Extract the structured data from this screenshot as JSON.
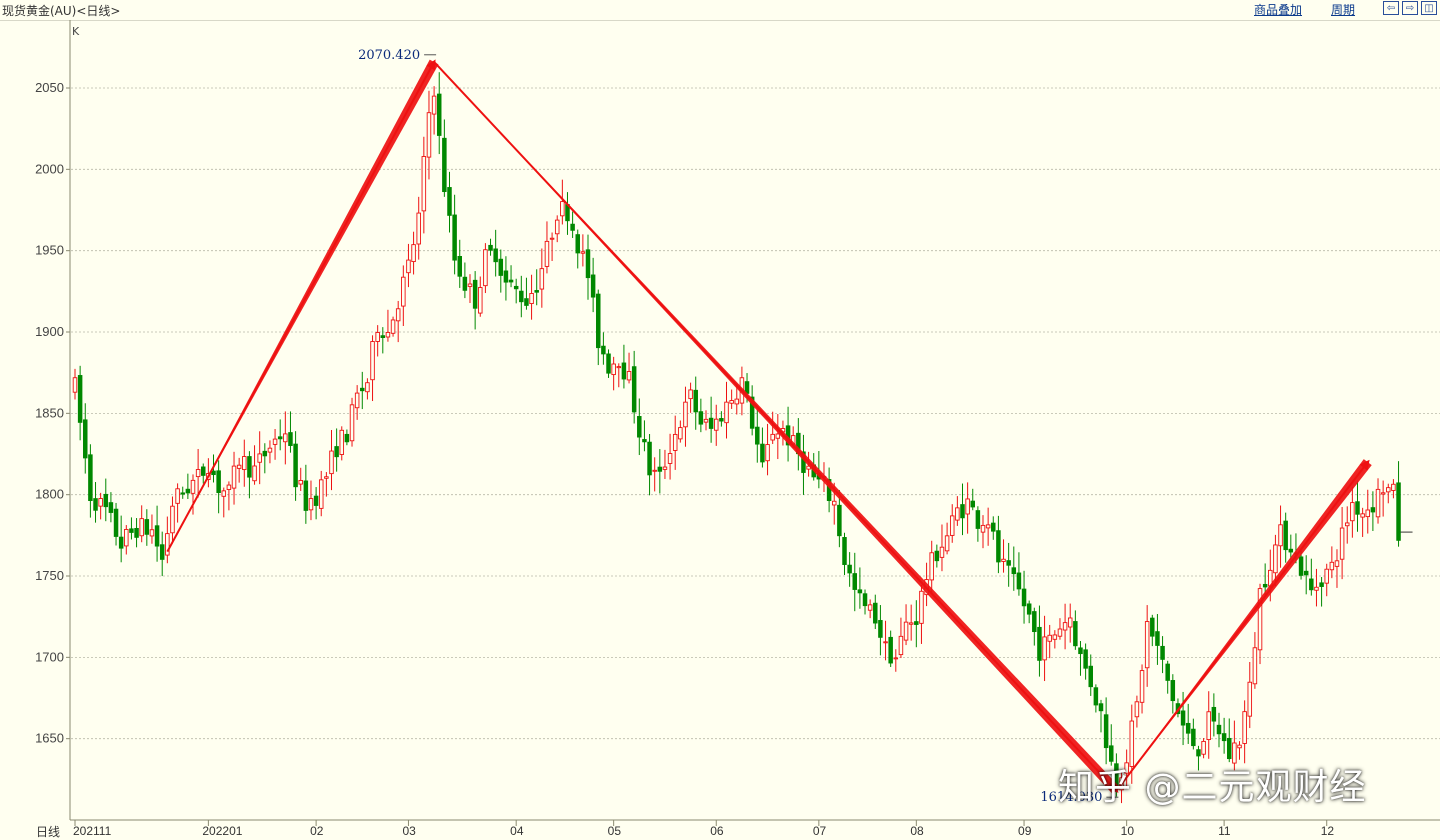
{
  "header": {
    "title": "现货黄金(AU)<日线>",
    "overlay_link": "商品叠加",
    "period_link": "周期"
  },
  "footer": {
    "period_label": "日线"
  },
  "watermark": "知乎 @二元观财经",
  "colors": {
    "up": "#ee1111",
    "down": "#008800",
    "background": "#fffff0",
    "trend": "#ee1111"
  },
  "chart_data": {
    "type": "candlestick",
    "unit_label": "K",
    "ylim": [
      1600,
      2080
    ],
    "y_ticks": [
      1650,
      1700,
      1750,
      1800,
      1850,
      1900,
      1950,
      2000,
      2050
    ],
    "x_ticks": [
      {
        "label": "202111",
        "day": 0
      },
      {
        "label": "202201",
        "day": 26
      },
      {
        "label": "02",
        "day": 47
      },
      {
        "label": "03",
        "day": 65
      },
      {
        "label": "04",
        "day": 86
      },
      {
        "label": "05",
        "day": 105
      },
      {
        "label": "06",
        "day": 125
      },
      {
        "label": "07",
        "day": 145
      },
      {
        "label": "08",
        "day": 164
      },
      {
        "label": "09",
        "day": 185
      },
      {
        "label": "10",
        "day": 205
      },
      {
        "label": "11",
        "day": 224
      },
      {
        "label": "12",
        "day": 244
      }
    ],
    "annotations": [
      {
        "text": "2070.420",
        "day": 70,
        "value": 2070.42
      },
      {
        "text": "1614.030",
        "day": 203,
        "value": 1614.03
      }
    ],
    "trend_lines": [
      {
        "from": [
          18,
          1765
        ],
        "to": [
          70,
          2066
        ]
      },
      {
        "from": [
          70,
          2066
        ],
        "to": [
          203,
          1618
        ]
      },
      {
        "from": [
          203,
          1618
        ],
        "to": [
          252,
          1820
        ]
      }
    ],
    "anchors": [
      [
        0,
        1866
      ],
      [
        3,
        1800
      ],
      [
        6,
        1790
      ],
      [
        9,
        1770
      ],
      [
        12,
        1780
      ],
      [
        15,
        1778
      ],
      [
        17,
        1760
      ],
      [
        19,
        1795
      ],
      [
        22,
        1805
      ],
      [
        24,
        1810
      ],
      [
        26,
        1820
      ],
      [
        28,
        1805
      ],
      [
        30,
        1800
      ],
      [
        32,
        1822
      ],
      [
        35,
        1815
      ],
      [
        38,
        1830
      ],
      [
        41,
        1840
      ],
      [
        43,
        1810
      ],
      [
        45,
        1795
      ],
      [
        47,
        1800
      ],
      [
        49,
        1812
      ],
      [
        51,
        1830
      ],
      [
        53,
        1838
      ],
      [
        55,
        1860
      ],
      [
        57,
        1870
      ],
      [
        59,
        1905
      ],
      [
        61,
        1900
      ],
      [
        63,
        1920
      ],
      [
        65,
        1940
      ],
      [
        67,
        1970
      ],
      [
        69,
        2035
      ],
      [
        70,
        2045
      ],
      [
        72,
        1990
      ],
      [
        74,
        1945
      ],
      [
        76,
        1930
      ],
      [
        78,
        1920
      ],
      [
        80,
        1945
      ],
      [
        82,
        1950
      ],
      [
        84,
        1930
      ],
      [
        86,
        1925
      ],
      [
        88,
        1920
      ],
      [
        90,
        1930
      ],
      [
        92,
        1950
      ],
      [
        94,
        1975
      ],
      [
        96,
        1975
      ],
      [
        98,
        1955
      ],
      [
        100,
        1935
      ],
      [
        102,
        1895
      ],
      [
        104,
        1880
      ],
      [
        106,
        1885
      ],
      [
        108,
        1870
      ],
      [
        110,
        1840
      ],
      [
        112,
        1815
      ],
      [
        114,
        1810
      ],
      [
        116,
        1830
      ],
      [
        118,
        1845
      ],
      [
        120,
        1860
      ],
      [
        122,
        1845
      ],
      [
        124,
        1840
      ],
      [
        126,
        1850
      ],
      [
        128,
        1860
      ],
      [
        130,
        1870
      ],
      [
        132,
        1845
      ],
      [
        134,
        1815
      ],
      [
        136,
        1840
      ],
      [
        138,
        1840
      ],
      [
        140,
        1830
      ],
      [
        142,
        1820
      ],
      [
        144,
        1810
      ],
      [
        146,
        1805
      ],
      [
        148,
        1795
      ],
      [
        150,
        1760
      ],
      [
        152,
        1740
      ],
      [
        154,
        1730
      ],
      [
        156,
        1725
      ],
      [
        158,
        1705
      ],
      [
        160,
        1700
      ],
      [
        162,
        1720
      ],
      [
        164,
        1725
      ],
      [
        166,
        1750
      ],
      [
        168,
        1765
      ],
      [
        170,
        1775
      ],
      [
        172,
        1790
      ],
      [
        174,
        1795
      ],
      [
        176,
        1785
      ],
      [
        178,
        1785
      ],
      [
        180,
        1760
      ],
      [
        182,
        1750
      ],
      [
        184,
        1740
      ],
      [
        186,
        1725
      ],
      [
        188,
        1705
      ],
      [
        190,
        1710
      ],
      [
        192,
        1720
      ],
      [
        194,
        1725
      ],
      [
        196,
        1700
      ],
      [
        198,
        1685
      ],
      [
        200,
        1665
      ],
      [
        202,
        1635
      ],
      [
        203,
        1625
      ],
      [
        205,
        1640
      ],
      [
        207,
        1670
      ],
      [
        209,
        1720
      ],
      [
        211,
        1705
      ],
      [
        213,
        1685
      ],
      [
        215,
        1665
      ],
      [
        217,
        1650
      ],
      [
        219,
        1645
      ],
      [
        221,
        1660
      ],
      [
        223,
        1655
      ],
      [
        225,
        1640
      ],
      [
        227,
        1650
      ],
      [
        229,
        1680
      ],
      [
        231,
        1740
      ],
      [
        233,
        1760
      ],
      [
        235,
        1775
      ],
      [
        237,
        1770
      ],
      [
        239,
        1755
      ],
      [
        241,
        1740
      ],
      [
        243,
        1750
      ],
      [
        245,
        1755
      ],
      [
        247,
        1775
      ],
      [
        249,
        1795
      ],
      [
        251,
        1790
      ],
      [
        253,
        1795
      ],
      [
        255,
        1805
      ],
      [
        257,
        1800
      ],
      [
        258,
        1775
      ]
    ]
  }
}
